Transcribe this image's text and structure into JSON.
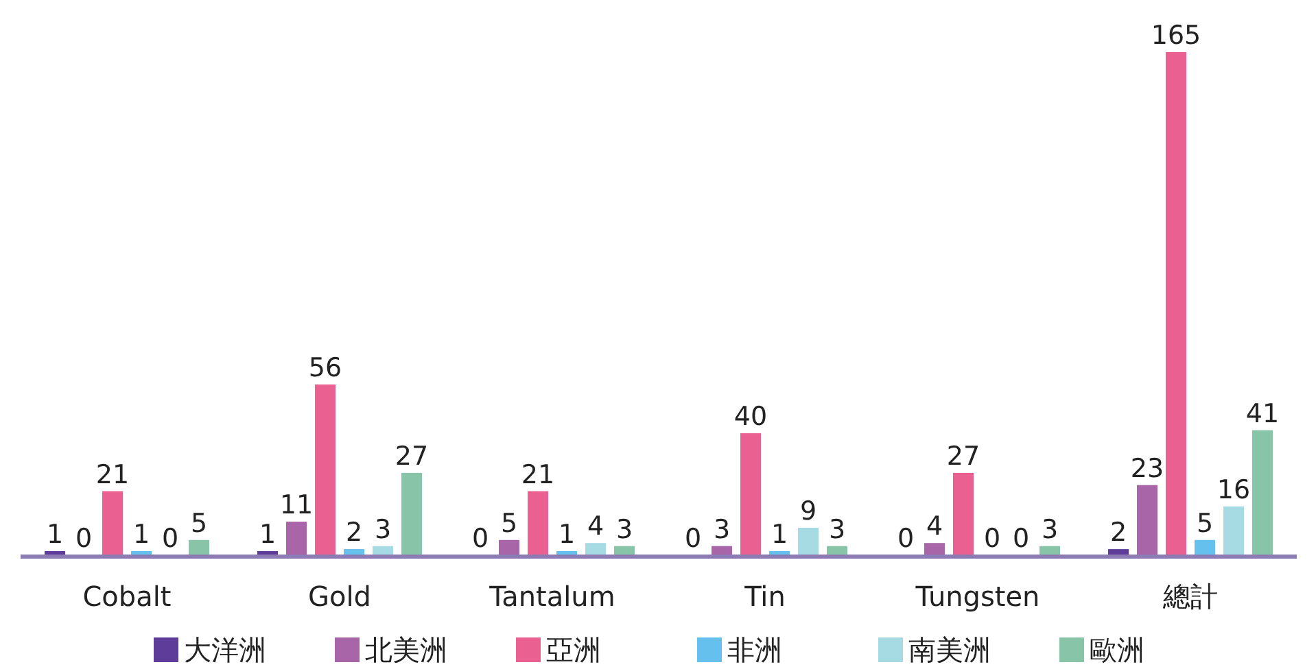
{
  "chart_data": {
    "type": "bar",
    "categories": [
      "Cobalt",
      "Gold",
      "Tantalum",
      "Tin",
      "Tungsten",
      "總計"
    ],
    "data_labels": true,
    "legend": "bottom",
    "series": [
      {
        "name": "大洋洲",
        "color": "#5e3c99",
        "values": [
          1,
          1,
          0,
          0,
          0,
          2
        ]
      },
      {
        "name": "北美洲",
        "color": "#a866a8",
        "values": [
          0,
          11,
          5,
          3,
          4,
          23
        ]
      },
      {
        "name": "亞洲",
        "color": "#ea6090",
        "values": [
          21,
          56,
          21,
          40,
          27,
          165
        ]
      },
      {
        "name": "非洲",
        "color": "#66c0ee",
        "values": [
          1,
          2,
          1,
          1,
          0,
          5
        ]
      },
      {
        "name": "南美洲",
        "color": "#a6dbe4",
        "values": [
          0,
          3,
          4,
          9,
          0,
          16
        ]
      },
      {
        "name": "歐洲",
        "color": "#88c5a8",
        "values": [
          5,
          27,
          3,
          3,
          3,
          41
        ]
      }
    ]
  }
}
